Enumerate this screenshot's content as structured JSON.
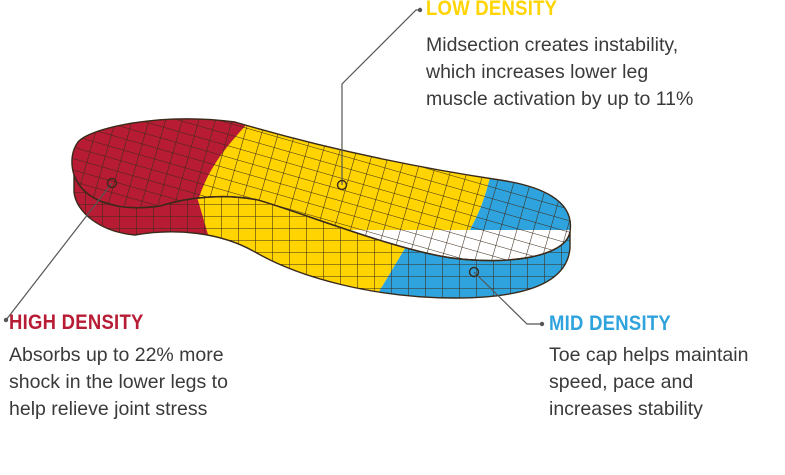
{
  "colors": {
    "high": "#b71c34",
    "low": "#ffd400",
    "mid": "#2fa3dd",
    "mesh": "#3a2a1a",
    "text": "#3a3a3a",
    "callout": "#555555"
  },
  "icons": {
    "callout_marker": "ring-dot"
  },
  "callouts": {
    "low": {
      "title": "LOW DENSITY",
      "lines": [
        "Midsection creates instability,",
        "which increases lower leg",
        "muscle activation by up to 11%"
      ]
    },
    "high": {
      "title": "HIGH DENSITY",
      "lines": [
        "Absorbs up to 22% more",
        "shock in the lower legs to",
        "help relieve joint stress"
      ]
    },
    "mid": {
      "title": "MID DENSITY",
      "lines": [
        "Toe cap helps maintain",
        "speed, pace and",
        "increases stability"
      ]
    }
  }
}
